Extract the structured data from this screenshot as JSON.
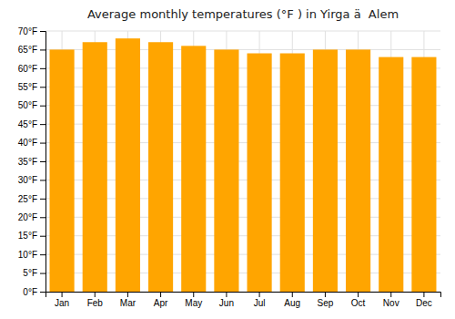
{
  "chart_data": {
    "type": "bar",
    "title": "Average monthly temperatures (°F ) in Yirga ä  Alem",
    "categories": [
      "Jan",
      "Feb",
      "Mar",
      "Apr",
      "May",
      "Jun",
      "Jul",
      "Aug",
      "Sep",
      "Oct",
      "Nov",
      "Dec"
    ],
    "values": [
      65,
      67,
      68,
      67,
      66,
      65,
      64,
      64,
      65,
      65,
      63,
      63
    ],
    "color": "#FFA500",
    "ylim": [
      0,
      70
    ],
    "yticks": [
      {
        "value": 0,
        "label": "0°F"
      },
      {
        "value": 5,
        "label": "5°F"
      },
      {
        "value": 10,
        "label": "10°F"
      },
      {
        "value": 15,
        "label": "15°F"
      },
      {
        "value": 20,
        "label": "20°F"
      },
      {
        "value": 25,
        "label": "25°F"
      },
      {
        "value": 30,
        "label": "30°F"
      },
      {
        "value": 35,
        "label": "35°F"
      },
      {
        "value": 40,
        "label": "40°F"
      },
      {
        "value": 45,
        "label": "45°F"
      },
      {
        "value": 50,
        "label": "50°F"
      },
      {
        "value": 55,
        "label": "55°F"
      },
      {
        "value": 60,
        "label": "60°F"
      },
      {
        "value": 65,
        "label": "65°F"
      },
      {
        "value": 70,
        "label": "70°F"
      }
    ],
    "grid": true
  }
}
